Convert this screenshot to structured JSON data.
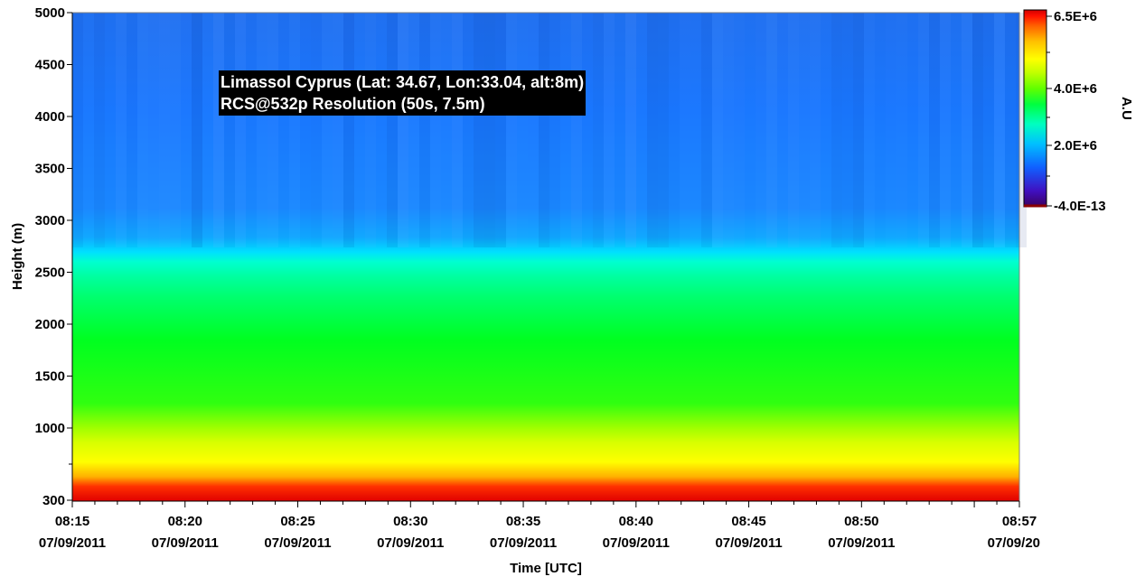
{
  "chart_data": {
    "type": "heatmap",
    "title": "",
    "xlabel": "Time [UTC]",
    "ylabel": "Height (m)",
    "annotation": {
      "line1": "Limassol Cyprus (Lat: 34.67, Lon:33.04, alt:8m)",
      "line2": "RCS@532p Resolution (50s, 7.5m)"
    },
    "x_ticks": [
      {
        "time": "08:15",
        "date": "07/09/2011"
      },
      {
        "time": "08:20",
        "date": "07/09/2011"
      },
      {
        "time": "08:25",
        "date": "07/09/2011"
      },
      {
        "time": "08:30",
        "date": "07/09/2011"
      },
      {
        "time": "08:35",
        "date": "07/09/2011"
      },
      {
        "time": "08:40",
        "date": "07/09/2011"
      },
      {
        "time": "08:45",
        "date": "07/09/2011"
      },
      {
        "time": "08:50",
        "date": "07/09/2011"
      },
      {
        "time": "08:57",
        "date": "07/09/20"
      }
    ],
    "xlim": [
      "08:15",
      "08:57"
    ],
    "y_ticks": [
      "5000",
      "4500",
      "4000",
      "3500",
      "3000",
      "2500",
      "2000",
      "1500",
      "1000",
      "300"
    ],
    "ylim": [
      300,
      5000
    ],
    "colorbar": {
      "label": "A.U",
      "ticks": [
        "6.5E+6",
        "4.0E+6",
        "2.0E+6",
        "-4.0E-13"
      ],
      "colors": [
        "#3a0060",
        "#4010c0",
        "#1060ff",
        "#00c0ff",
        "#00ffc0",
        "#00ff40",
        "#60ff00",
        "#c0ff00",
        "#ffff00",
        "#ffc000",
        "#ff6000",
        "#ff1000",
        "#d00000"
      ]
    },
    "layers": [
      {
        "height_from": 300,
        "height_to": 500,
        "color": "#f03000"
      },
      {
        "height_from": 500,
        "height_to": 700,
        "color": "#ffe000"
      },
      {
        "height_from": 700,
        "height_to": 1000,
        "color": "#c8ff00"
      },
      {
        "height_from": 1000,
        "height_to": 2300,
        "color": "#00ff30"
      },
      {
        "height_from": 2300,
        "height_to": 2700,
        "color": "#00ffc0"
      },
      {
        "height_from": 2700,
        "height_to": 5000,
        "color": "#1f78ff"
      }
    ]
  }
}
